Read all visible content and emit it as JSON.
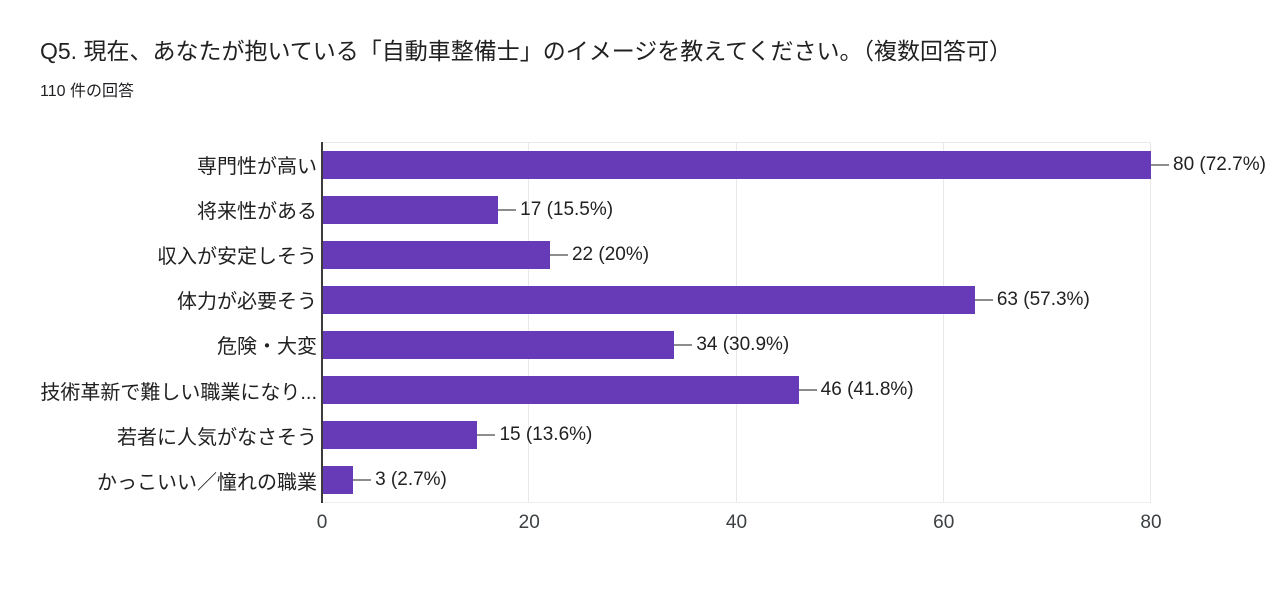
{
  "header": {
    "title": "Q5. 現在、あなたが抱いている「自動車整備士」のイメージを教えてください。（複数回答可）",
    "response_count": "110 件の回答"
  },
  "chart_data": {
    "type": "bar",
    "orientation": "horizontal",
    "title": "Q5. 現在、あなたが抱いている「自動車整備士」のイメージを教えてください。（複数回答可）",
    "subtitle": "110 件の回答",
    "categories": [
      "専門性が高い",
      "将来性がある",
      "収入が安定しそう",
      "体力が必要そう",
      "危険・大変",
      "技術革新で難しい職業になり...",
      "若者に人気がなさそう",
      "かっこいい／憧れの職業"
    ],
    "values": [
      80,
      17,
      22,
      63,
      34,
      46,
      15,
      3
    ],
    "value_labels": [
      "80 (72.7%)",
      "17 (15.5%)",
      "22 (20%)",
      "63 (57.3%)",
      "34 (30.9%)",
      "46 (41.8%)",
      "15 (13.6%)",
      "3 (2.7%)"
    ],
    "xlim": [
      0,
      80
    ],
    "x_ticks": [
      0,
      20,
      40,
      60,
      80
    ],
    "bar_color": "#673ab7",
    "grid": "vertical-light",
    "legend": "none"
  }
}
